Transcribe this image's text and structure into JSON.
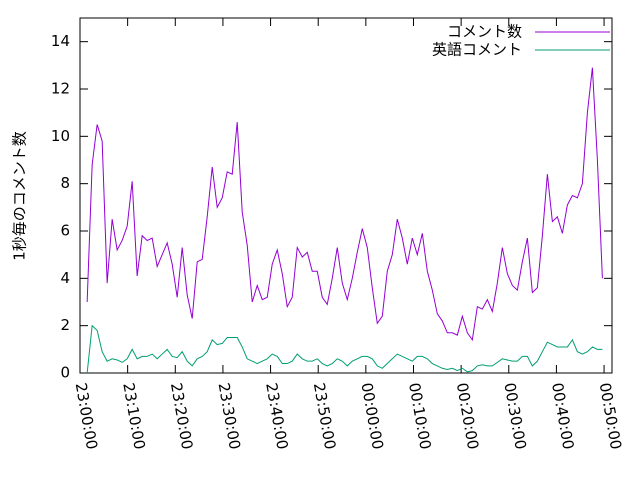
{
  "chart_data": {
    "type": "line",
    "y_label": "1秒毎のコメント数",
    "x": [
      "23:01:30",
      "23:02:33",
      "23:03:36",
      "23:04:39",
      "23:05:42",
      "23:06:45",
      "23:07:48",
      "23:08:51",
      "23:09:54",
      "23:10:57",
      "23:12:00",
      "23:13:03",
      "23:14:06",
      "23:15:09",
      "23:16:12",
      "23:17:15",
      "23:18:18",
      "23:19:21",
      "23:20:24",
      "23:21:27",
      "23:22:30",
      "23:23:33",
      "23:24:36",
      "23:25:39",
      "23:26:42",
      "23:27:45",
      "23:28:48",
      "23:29:51",
      "23:30:54",
      "23:31:57",
      "23:33:00",
      "23:34:03",
      "23:35:06",
      "23:36:09",
      "23:37:12",
      "23:38:15",
      "23:39:18",
      "23:40:21",
      "23:41:24",
      "23:42:27",
      "23:43:30",
      "23:44:33",
      "23:45:36",
      "23:46:39",
      "23:47:42",
      "23:48:45",
      "23:49:48",
      "23:50:51",
      "23:51:54",
      "23:52:57",
      "23:54:00",
      "23:55:03",
      "23:56:06",
      "23:57:09",
      "23:58:12",
      "23:59:15",
      "00:00:18",
      "00:01:21",
      "00:02:24",
      "00:03:27",
      "00:04:30",
      "00:05:33",
      "00:06:36",
      "00:07:39",
      "00:08:42",
      "00:09:45",
      "00:10:48",
      "00:11:51",
      "00:12:54",
      "00:13:57",
      "00:15:00",
      "00:16:03",
      "00:17:06",
      "00:18:09",
      "00:19:12",
      "00:20:15",
      "00:21:18",
      "00:22:21",
      "00:23:24",
      "00:24:27",
      "00:25:30",
      "00:26:33",
      "00:27:36",
      "00:28:39",
      "00:29:42",
      "00:30:45",
      "00:31:48",
      "00:32:51",
      "00:33:54",
      "00:34:57",
      "00:36:00",
      "00:37:03",
      "00:38:06",
      "00:39:09",
      "00:40:12",
      "00:41:15",
      "00:42:18",
      "00:43:21",
      "00:44:24",
      "00:45:27",
      "00:46:30",
      "00:47:33",
      "00:48:36",
      "00:49:39"
    ],
    "series": [
      {
        "name": "コメント数",
        "color": "#9400d3",
        "values": [
          3.0,
          8.8,
          10.5,
          9.8,
          3.8,
          6.5,
          5.2,
          5.6,
          6.2,
          8.1,
          4.1,
          5.8,
          5.6,
          5.7,
          4.5,
          5.0,
          5.5,
          4.6,
          3.2,
          5.3,
          3.3,
          2.3,
          4.7,
          4.8,
          6.6,
          8.7,
          7.0,
          7.4,
          8.5,
          8.4,
          10.6,
          6.8,
          5.4,
          3.0,
          3.7,
          3.1,
          3.2,
          4.6,
          5.2,
          4.2,
          2.8,
          3.2,
          5.3,
          4.9,
          5.1,
          4.3,
          4.3,
          3.2,
          2.9,
          4.0,
          5.3,
          3.8,
          3.1,
          4.0,
          5.1,
          6.1,
          5.3,
          3.6,
          2.1,
          2.4,
          4.3,
          5.0,
          6.5,
          5.7,
          4.6,
          5.7,
          5.0,
          5.9,
          4.3,
          3.5,
          2.5,
          2.2,
          1.7,
          1.7,
          1.6,
          2.4,
          1.7,
          1.4,
          2.8,
          2.7,
          3.1,
          2.6,
          3.8,
          5.3,
          4.2,
          3.7,
          3.5,
          4.7,
          5.7,
          3.4,
          3.6,
          5.8,
          8.4,
          6.4,
          6.6,
          5.9,
          7.1,
          7.5,
          7.4,
          8.0,
          11.0,
          12.9,
          9.0,
          4.0
        ]
      },
      {
        "name": "英語コメント",
        "color": "#009e73",
        "values": [
          0,
          2.0,
          1.8,
          0.9,
          0.5,
          0.6,
          0.55,
          0.45,
          0.6,
          1.0,
          0.6,
          0.7,
          0.7,
          0.8,
          0.6,
          0.8,
          1.0,
          0.7,
          0.65,
          0.9,
          0.5,
          0.3,
          0.6,
          0.7,
          0.9,
          1.4,
          1.2,
          1.25,
          1.5,
          1.5,
          1.5,
          1.1,
          0.6,
          0.5,
          0.4,
          0.5,
          0.6,
          0.8,
          0.7,
          0.4,
          0.4,
          0.5,
          0.8,
          0.6,
          0.5,
          0.5,
          0.6,
          0.4,
          0.3,
          0.4,
          0.6,
          0.5,
          0.3,
          0.5,
          0.6,
          0.7,
          0.7,
          0.6,
          0.3,
          0.2,
          0.4,
          0.6,
          0.8,
          0.7,
          0.6,
          0.5,
          0.7,
          0.7,
          0.6,
          0.4,
          0.3,
          0.2,
          0.15,
          0.2,
          0.1,
          0.2,
          0.05,
          0.1,
          0.3,
          0.35,
          0.3,
          0.3,
          0.45,
          0.6,
          0.55,
          0.5,
          0.5,
          0.7,
          0.7,
          0.3,
          0.5,
          0.9,
          1.3,
          1.2,
          1.1,
          1.1,
          1.1,
          1.4,
          0.9,
          0.8,
          0.9,
          1.1,
          1.0,
          1.0
        ]
      }
    ],
    "xlim": [
      "23:00:00",
      "00:51:40"
    ],
    "xticks": [
      "23:00:00",
      "23:10:00",
      "23:20:00",
      "23:30:00",
      "23:40:00",
      "23:50:00",
      "00:00:00",
      "00:10:00",
      "00:20:00",
      "00:30:00",
      "00:40:00",
      "00:50:00"
    ],
    "ylim": [
      0,
      15
    ],
    "yticks": [
      0,
      2,
      4,
      6,
      8,
      10,
      12,
      14
    ],
    "legend": "top-right"
  }
}
